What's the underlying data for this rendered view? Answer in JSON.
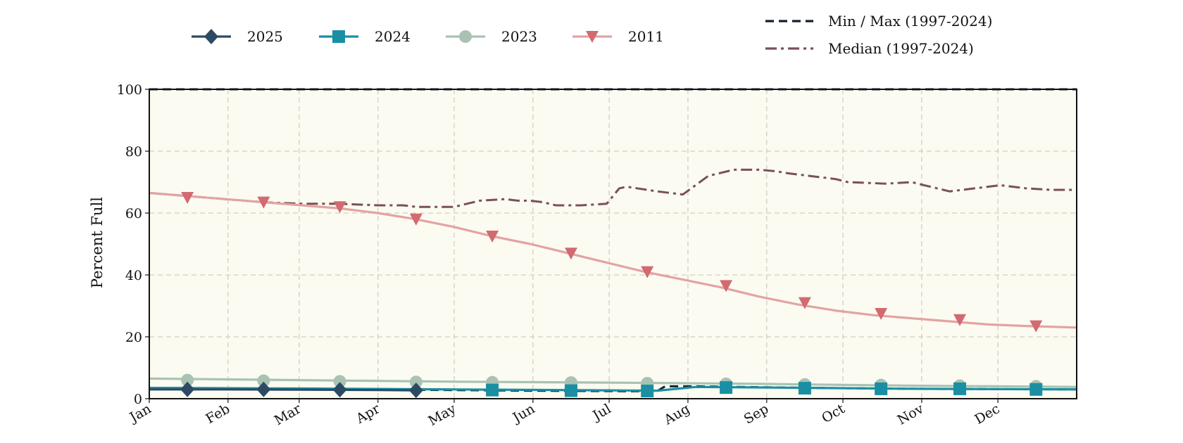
{
  "chart_data": {
    "type": "line",
    "title": "",
    "xlabel": "",
    "ylabel": "Percent Full",
    "ylim": [
      0,
      100
    ],
    "xlim": [
      0,
      365
    ],
    "grid": true,
    "legend_position": "top",
    "x_ticks": [
      {
        "label": "Jan",
        "day": 0
      },
      {
        "label": "Feb",
        "day": 31
      },
      {
        "label": "Mar",
        "day": 59
      },
      {
        "label": "Apr",
        "day": 90
      },
      {
        "label": "May",
        "day": 120
      },
      {
        "label": "Jun",
        "day": 151
      },
      {
        "label": "Jul",
        "day": 181
      },
      {
        "label": "Aug",
        "day": 212
      },
      {
        "label": "Sep",
        "day": 243
      },
      {
        "label": "Oct",
        "day": 273
      },
      {
        "label": "Nov",
        "day": 304
      },
      {
        "label": "Dec",
        "day": 334
      }
    ],
    "y_ticks": [
      0,
      20,
      40,
      60,
      80,
      100
    ],
    "colors": {
      "plot_background": "#fbfbf1",
      "grid": "#cfcfc4",
      "s2025": "#2c4a63",
      "s2024": "#1a8fa3",
      "s2023": "#a9c2b4",
      "s2011": "#e3a3a3",
      "s2011_marker": "#d26a70",
      "minmax": "#131f2e",
      "median": "#7a5058"
    },
    "series": [
      {
        "name": "Min / Max (1997-2024)",
        "style": "dashed",
        "color_key": "minmax",
        "x": [
          0,
          365
        ],
        "values": [
          100,
          100
        ]
      },
      {
        "name": "Min / Max (1997-2024)",
        "style": "dashed",
        "color_key": "minmax",
        "x": [
          0,
          60,
          120,
          150,
          190,
          200,
          203,
          215,
          260,
          300,
          365
        ],
        "values": [
          3.2,
          3.0,
          2.8,
          2.6,
          2.4,
          2.5,
          4.0,
          4.0,
          3.5,
          3.2,
          3.0
        ]
      },
      {
        "name": "Median (1997-2024)",
        "style": "dashdot",
        "color_key": "median",
        "x": [
          0,
          15,
          30,
          45,
          60,
          75,
          90,
          100,
          105,
          110,
          120,
          130,
          140,
          145,
          150,
          155,
          160,
          170,
          180,
          185,
          188,
          192,
          196,
          200,
          210,
          220,
          230,
          240,
          247,
          250,
          260,
          270,
          275,
          290,
          300,
          305,
          315,
          325,
          335,
          345,
          355,
          365
        ],
        "values": [
          66.5,
          65.5,
          64.5,
          63.5,
          63,
          63,
          62.5,
          62.5,
          62,
          62,
          62,
          64,
          64.5,
          64,
          64,
          63.5,
          62.5,
          62.5,
          63,
          68,
          68.5,
          68,
          67.5,
          67,
          66,
          72,
          74,
          74,
          73.5,
          73,
          72,
          71,
          70,
          69.5,
          70,
          69,
          67,
          68,
          69,
          68,
          67.5,
          67.5
        ]
      },
      {
        "name": "2023",
        "style": "solid",
        "color_key": "s2023",
        "marker": "circle",
        "x": [
          0,
          60,
          120,
          180,
          240,
          300,
          365
        ],
        "values": [
          6.5,
          6.0,
          5.5,
          5.2,
          4.8,
          4.2,
          3.8
        ]
      },
      {
        "name": "2024",
        "style": "solid",
        "color_key": "s2024",
        "marker": "square",
        "x": [
          0,
          60,
          120,
          180,
          200,
          215,
          260,
          300,
          365
        ],
        "values": [
          3.5,
          3.3,
          3.0,
          2.7,
          2.6,
          3.8,
          3.5,
          3.2,
          3.0
        ]
      },
      {
        "name": "2025",
        "style": "solid",
        "color_key": "s2025",
        "marker": "diamond",
        "x": [
          0,
          30,
          60,
          90,
          105
        ],
        "values": [
          3.0,
          3.0,
          2.9,
          2.8,
          2.7
        ]
      },
      {
        "name": "2011",
        "style": "solid",
        "color_key": "s2011",
        "marker": "triangle-down",
        "x": [
          0,
          15,
          30,
          45,
          60,
          75,
          90,
          105,
          120,
          135,
          150,
          165,
          180,
          195,
          210,
          225,
          240,
          255,
          270,
          285,
          300,
          315,
          330,
          345,
          365
        ],
        "values": [
          66.5,
          65.5,
          64.5,
          63.5,
          62.5,
          61.5,
          60,
          58,
          55.5,
          52.5,
          50,
          47,
          44,
          41,
          38.5,
          36,
          33,
          30.5,
          28.5,
          27,
          26,
          25,
          24,
          23.5,
          23
        ]
      }
    ],
    "markers": {
      "days": [
        15,
        45,
        75,
        105,
        135,
        166,
        196,
        227,
        258,
        288,
        319,
        349
      ],
      "s2011": [
        65,
        63.5,
        62,
        58,
        52.5,
        47,
        41,
        36.5,
        31,
        27.5,
        25.5,
        23.5
      ],
      "s2023": [
        6.0,
        5.8,
        5.6,
        5.4,
        5.3,
        5.2,
        5.0,
        4.8,
        4.6,
        4.4,
        4.2,
        4.0
      ],
      "s2024": [
        null,
        null,
        null,
        null,
        2.8,
        2.6,
        2.5,
        3.6,
        3.4,
        3.2,
        3.2,
        3.0
      ],
      "s2025": [
        3.0,
        3.0,
        2.9,
        2.7,
        null,
        null,
        null,
        null,
        null,
        null,
        null,
        null
      ]
    }
  },
  "legend": {
    "items": [
      {
        "label": "2025",
        "color_key": "s2025",
        "marker": "diamond",
        "style": "solid"
      },
      {
        "label": "2024",
        "color_key": "s2024",
        "marker": "square",
        "style": "solid"
      },
      {
        "label": "2023",
        "color_key": "s2023",
        "marker": "circle",
        "style": "solid"
      },
      {
        "label": "2011",
        "color_key": "s2011",
        "marker": "triangle-down",
        "style": "solid"
      }
    ],
    "ref_items": [
      {
        "label": "Min / Max (1997-2024)",
        "color_key": "minmax",
        "style": "dashed"
      },
      {
        "label": "Median (1997-2024)",
        "color_key": "median",
        "style": "dashdot"
      }
    ]
  }
}
